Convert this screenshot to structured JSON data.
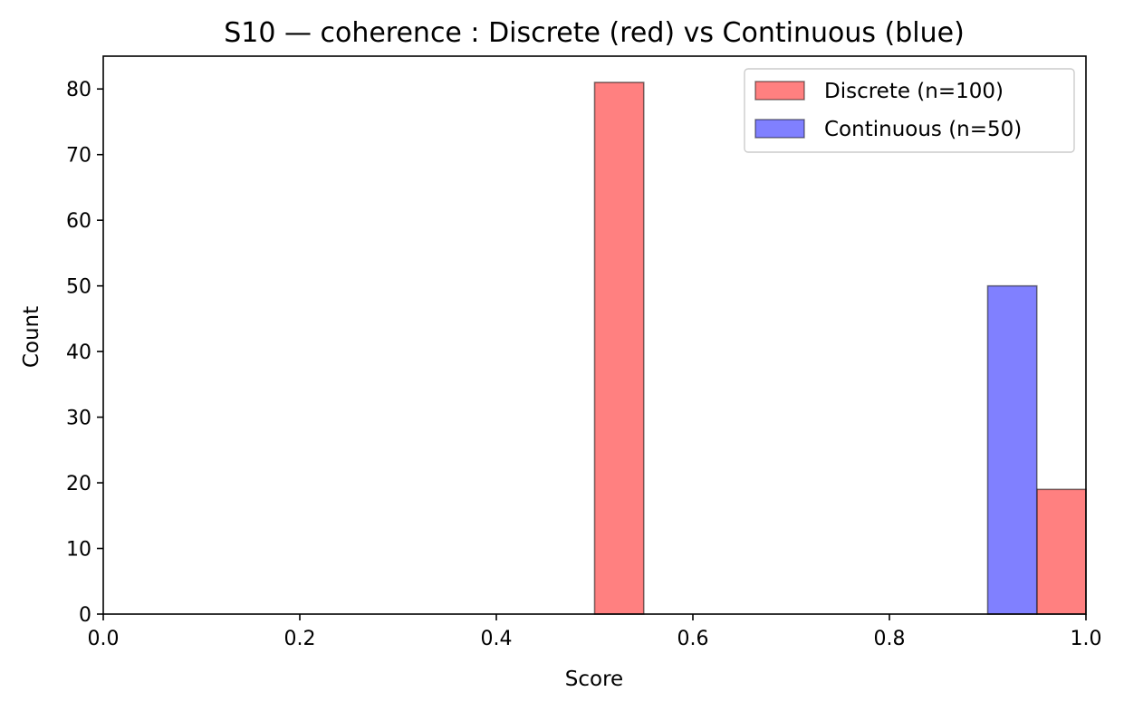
{
  "chart_data": {
    "type": "bar",
    "title": "S10 — coherence : Discrete (red) vs Continuous (blue)",
    "xlabel": "Score",
    "ylabel": "Count",
    "xlim": [
      0.0,
      1.0
    ],
    "ylim": [
      0,
      85
    ],
    "xticks": [
      0.0,
      0.2,
      0.4,
      0.6,
      0.8,
      1.0
    ],
    "xtick_labels": [
      "0.0",
      "0.2",
      "0.4",
      "0.6",
      "0.8",
      "1.0"
    ],
    "yticks": [
      0,
      10,
      20,
      30,
      40,
      50,
      60,
      70,
      80
    ],
    "ytick_labels": [
      "0",
      "10",
      "20",
      "30",
      "40",
      "50",
      "60",
      "70",
      "80"
    ],
    "bin_width": 0.05,
    "grid": false,
    "legend_position": "top-right",
    "series": [
      {
        "name": "Discrete (n=100)",
        "color": "#ff8080",
        "bins": [
          {
            "x0": 0.5,
            "x1": 0.55,
            "count": 81
          },
          {
            "x0": 0.95,
            "x1": 1.0,
            "count": 19
          }
        ]
      },
      {
        "name": "Continuous (n=50)",
        "color": "#8080ff",
        "bins": [
          {
            "x0": 0.9,
            "x1": 0.95,
            "count": 50
          }
        ]
      }
    ]
  }
}
